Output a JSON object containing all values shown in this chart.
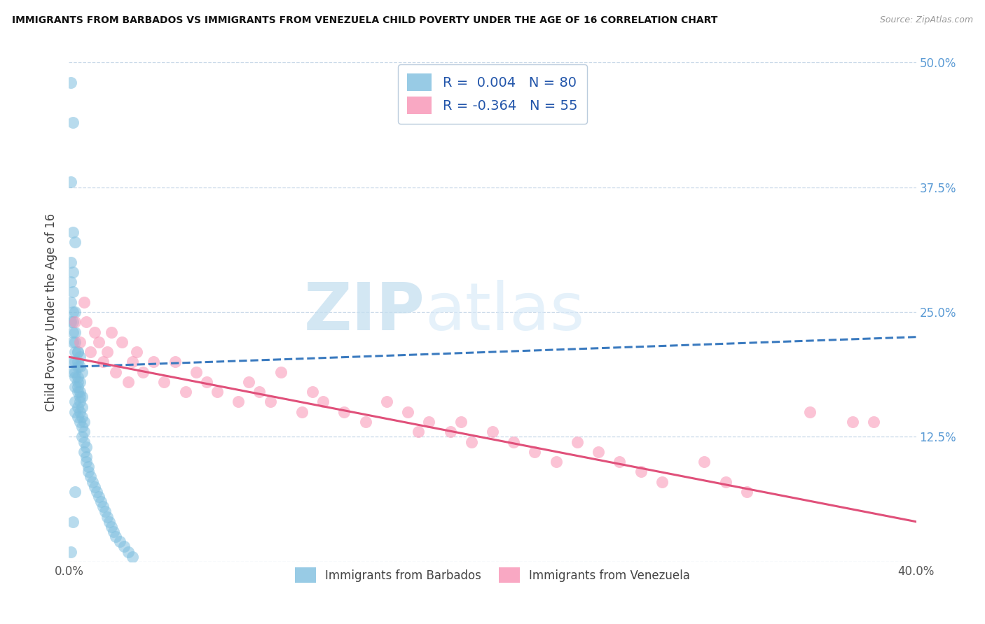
{
  "title": "IMMIGRANTS FROM BARBADOS VS IMMIGRANTS FROM VENEZUELA CHILD POVERTY UNDER THE AGE OF 16 CORRELATION CHART",
  "source": "Source: ZipAtlas.com",
  "ylabel": "Child Poverty Under the Age of 16",
  "xlim": [
    0.0,
    0.4
  ],
  "ylim": [
    0.0,
    0.5
  ],
  "xtick_labels": [
    "0.0%",
    "40.0%"
  ],
  "ytick_positions": [
    0.0,
    0.125,
    0.25,
    0.375,
    0.5
  ],
  "ytick_labels": [
    "",
    "12.5%",
    "25.0%",
    "37.5%",
    "50.0%"
  ],
  "barbados_color": "#7fbfdf",
  "venezuela_color": "#f892b4",
  "barbados_trendline_color": "#3a7abf",
  "venezuela_trendline_color": "#e0507a",
  "barbados_R": 0.004,
  "barbados_N": 80,
  "venezuela_R": -0.364,
  "venezuela_N": 55,
  "watermark_zip": "ZIP",
  "watermark_atlas": "atlas",
  "background_color": "#ffffff",
  "grid_color": "#c8d8e8",
  "legend_label_barbados": "Immigrants from Barbados",
  "legend_label_venezuela": "Immigrants from Venezuela",
  "barbados_x": [
    0.001,
    0.002,
    0.001,
    0.002,
    0.003,
    0.001,
    0.002,
    0.001,
    0.002,
    0.001,
    0.002,
    0.003,
    0.001,
    0.002,
    0.003,
    0.002,
    0.003,
    0.002,
    0.003,
    0.004,
    0.002,
    0.003,
    0.002,
    0.003,
    0.004,
    0.003,
    0.004,
    0.003,
    0.004,
    0.005,
    0.003,
    0.004,
    0.003,
    0.004,
    0.005,
    0.004,
    0.005,
    0.004,
    0.005,
    0.006,
    0.004,
    0.005,
    0.004,
    0.005,
    0.006,
    0.005,
    0.006,
    0.005,
    0.006,
    0.007,
    0.006,
    0.007,
    0.006,
    0.007,
    0.008,
    0.007,
    0.008,
    0.008,
    0.009,
    0.009,
    0.01,
    0.011,
    0.012,
    0.013,
    0.014,
    0.015,
    0.016,
    0.017,
    0.018,
    0.019,
    0.02,
    0.021,
    0.022,
    0.024,
    0.026,
    0.028,
    0.03,
    0.002,
    0.003,
    0.001
  ],
  "barbados_y": [
    0.48,
    0.44,
    0.38,
    0.33,
    0.32,
    0.3,
    0.29,
    0.28,
    0.27,
    0.26,
    0.25,
    0.25,
    0.24,
    0.24,
    0.23,
    0.23,
    0.22,
    0.22,
    0.21,
    0.21,
    0.2,
    0.2,
    0.19,
    0.19,
    0.195,
    0.185,
    0.18,
    0.175,
    0.17,
    0.165,
    0.16,
    0.155,
    0.15,
    0.145,
    0.14,
    0.21,
    0.205,
    0.2,
    0.195,
    0.19,
    0.185,
    0.18,
    0.175,
    0.17,
    0.165,
    0.16,
    0.155,
    0.15,
    0.145,
    0.14,
    0.135,
    0.13,
    0.125,
    0.12,
    0.115,
    0.11,
    0.105,
    0.1,
    0.095,
    0.09,
    0.085,
    0.08,
    0.075,
    0.07,
    0.065,
    0.06,
    0.055,
    0.05,
    0.045,
    0.04,
    0.035,
    0.03,
    0.025,
    0.02,
    0.015,
    0.01,
    0.005,
    0.04,
    0.07,
    0.01
  ],
  "venezuela_x": [
    0.003,
    0.005,
    0.007,
    0.008,
    0.01,
    0.012,
    0.014,
    0.016,
    0.018,
    0.02,
    0.022,
    0.025,
    0.028,
    0.03,
    0.032,
    0.035,
    0.04,
    0.045,
    0.05,
    0.055,
    0.06,
    0.065,
    0.07,
    0.08,
    0.085,
    0.09,
    0.095,
    0.1,
    0.11,
    0.115,
    0.12,
    0.13,
    0.14,
    0.15,
    0.16,
    0.165,
    0.17,
    0.18,
    0.185,
    0.19,
    0.2,
    0.21,
    0.22,
    0.23,
    0.24,
    0.25,
    0.26,
    0.27,
    0.28,
    0.3,
    0.31,
    0.32,
    0.35,
    0.37,
    0.38
  ],
  "venezuela_y": [
    0.24,
    0.22,
    0.26,
    0.24,
    0.21,
    0.23,
    0.22,
    0.2,
    0.21,
    0.23,
    0.19,
    0.22,
    0.18,
    0.2,
    0.21,
    0.19,
    0.2,
    0.18,
    0.2,
    0.17,
    0.19,
    0.18,
    0.17,
    0.16,
    0.18,
    0.17,
    0.16,
    0.19,
    0.15,
    0.17,
    0.16,
    0.15,
    0.14,
    0.16,
    0.15,
    0.13,
    0.14,
    0.13,
    0.14,
    0.12,
    0.13,
    0.12,
    0.11,
    0.1,
    0.12,
    0.11,
    0.1,
    0.09,
    0.08,
    0.1,
    0.08,
    0.07,
    0.15,
    0.14,
    0.14
  ],
  "barbados_trend_x0": 0.0,
  "barbados_trend_x1": 0.4,
  "barbados_trend_y0": 0.195,
  "barbados_trend_y1": 0.225,
  "venezuela_trend_x0": 0.0,
  "venezuela_trend_x1": 0.4,
  "venezuela_trend_y0": 0.205,
  "venezuela_trend_y1": 0.04
}
